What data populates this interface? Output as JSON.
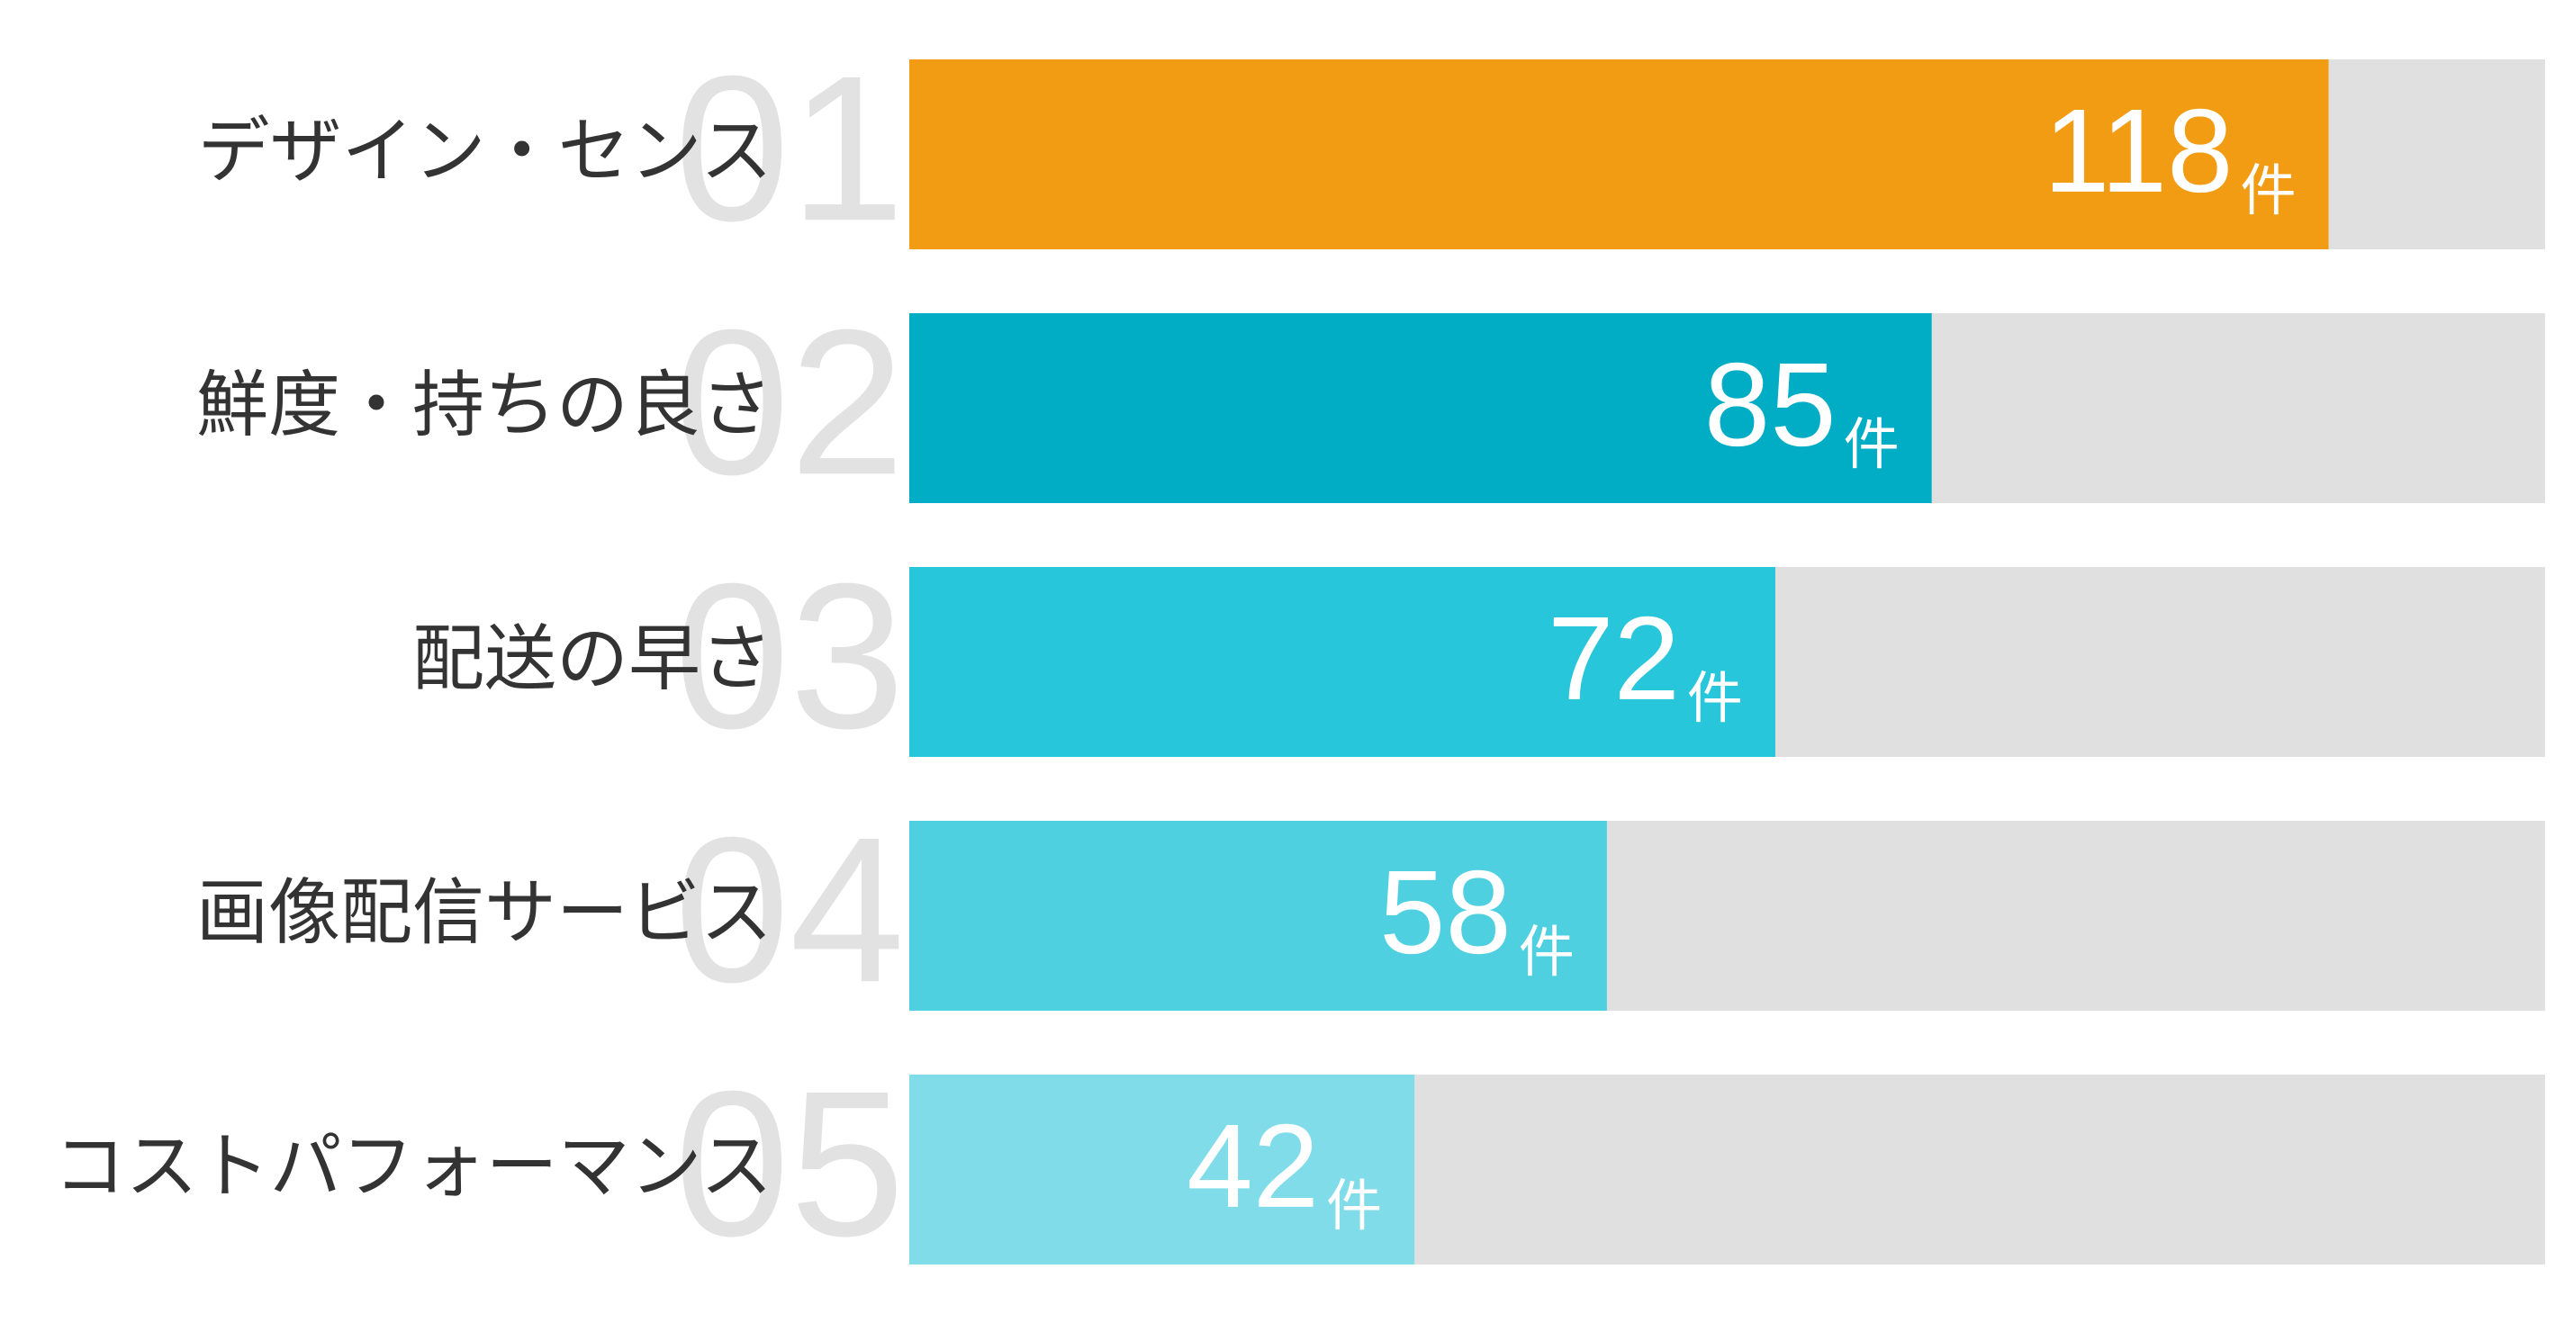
{
  "chart_data": {
    "type": "bar",
    "orientation": "horizontal",
    "ranks": [
      "01",
      "02",
      "03",
      "04",
      "05"
    ],
    "categories": [
      "デザイン・センス",
      "鮮度・持ちの良さ",
      "配送の早さ",
      "画像配信サービス",
      "コストパフォーマンス"
    ],
    "values": [
      118,
      85,
      72,
      58,
      42
    ],
    "unit": "件",
    "colors": [
      "#f29c14",
      "#00adc4",
      "#27c6da",
      "#4fd0e1",
      "#80dce9"
    ],
    "track_color": "#e0e0e0",
    "xlim": [
      0,
      136
    ]
  }
}
